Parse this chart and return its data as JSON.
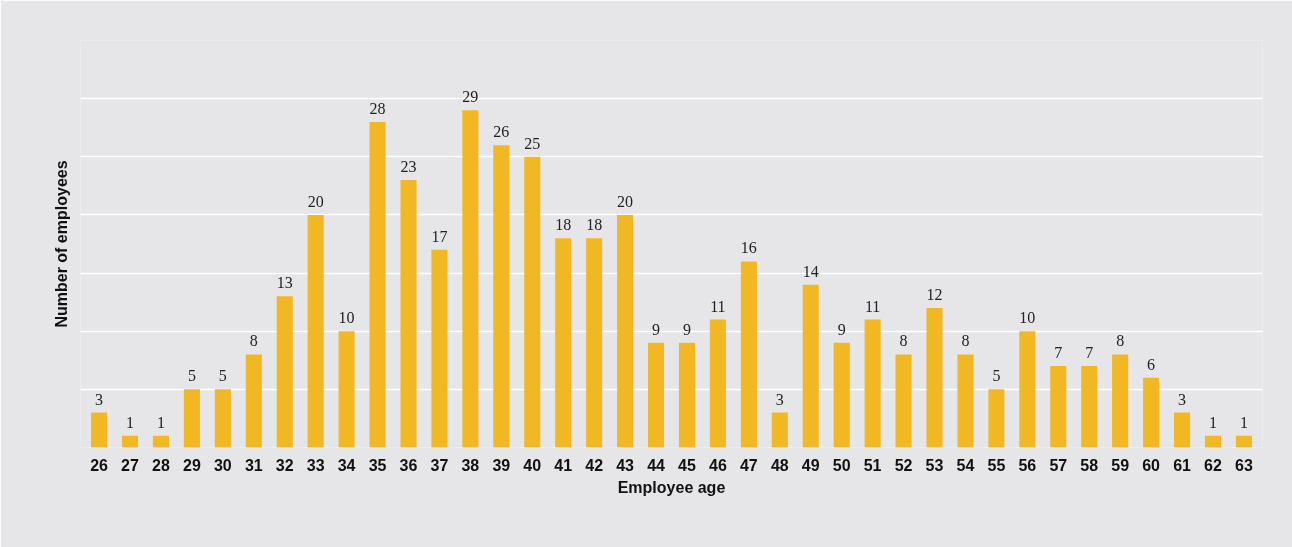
{
  "chart_data": {
    "type": "bar",
    "xlabel": "Employee age",
    "ylabel": "Number of employees",
    "categories": [
      "26",
      "27",
      "28",
      "29",
      "30",
      "31",
      "32",
      "33",
      "34",
      "35",
      "36",
      "37",
      "38",
      "39",
      "40",
      "41",
      "42",
      "43",
      "44",
      "45",
      "46",
      "47",
      "48",
      "49",
      "50",
      "51",
      "52",
      "53",
      "54",
      "55",
      "56",
      "57",
      "58",
      "59",
      "60",
      "61",
      "62",
      "63"
    ],
    "values": [
      3,
      1,
      1,
      5,
      5,
      8,
      13,
      20,
      10,
      28,
      23,
      17,
      29,
      26,
      25,
      18,
      18,
      20,
      9,
      9,
      11,
      16,
      3,
      14,
      9,
      11,
      8,
      12,
      8,
      5,
      10,
      7,
      7,
      8,
      6,
      3,
      1,
      1
    ],
    "color": "#f2b824",
    "data_labels": true,
    "ylim": [
      0,
      35
    ],
    "yticks": [
      {
        "value": 0,
        "label": null
      },
      {
        "value": 5,
        "label": null
      },
      {
        "value": 10,
        "label": null
      },
      {
        "value": 15,
        "label": null
      },
      {
        "value": 20,
        "label": null
      },
      {
        "value": 25,
        "label": null
      },
      {
        "value": 30,
        "label": null
      },
      {
        "value": 35,
        "label": null
      }
    ],
    "grid": "y",
    "tick_labels": "x"
  }
}
